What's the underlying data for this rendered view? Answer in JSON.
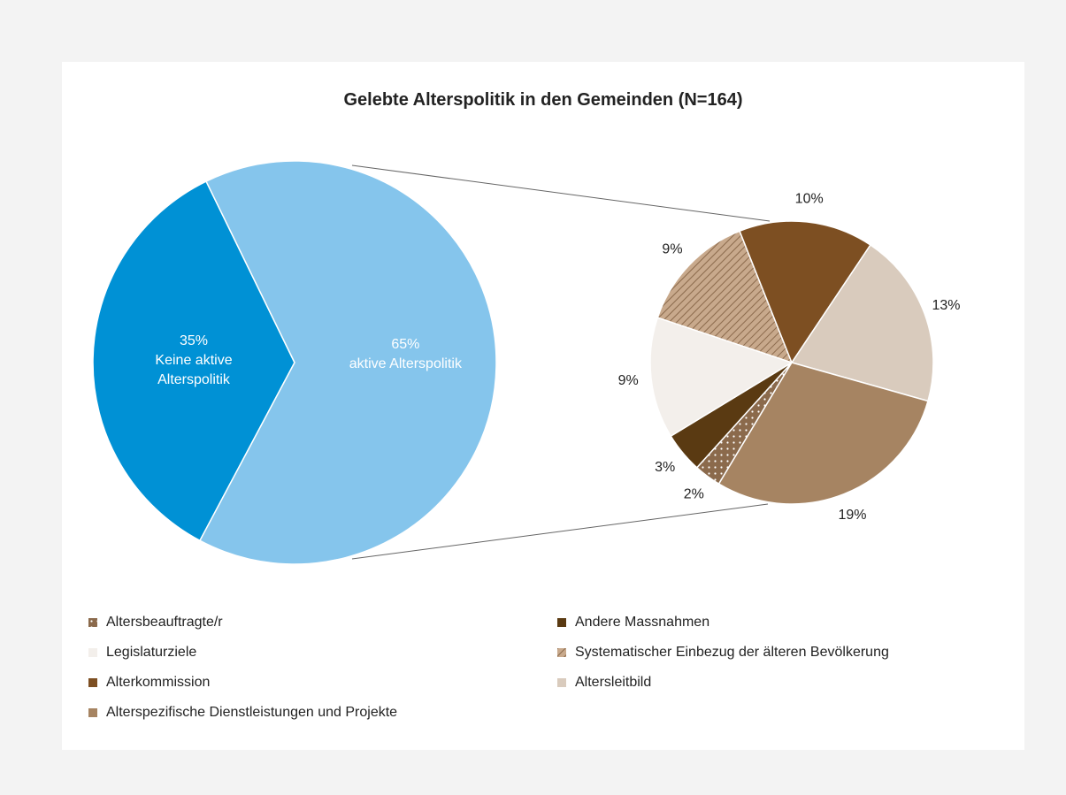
{
  "chart_data": {
    "type": "pie_of_pie",
    "title": "Gelebte Alterspolitik in den Gemeinden (N=164)",
    "main": {
      "categories": [
        "Keine aktive Alterspolitik",
        "aktive Alterspolitik"
      ],
      "values": [
        35,
        65
      ],
      "value_labels": [
        "35%",
        "65%"
      ],
      "colors": [
        "#0091d5",
        "#85c5ec"
      ]
    },
    "detail": {
      "categories": [
        "Altersbeauftragte/r",
        "Andere Massnahmen",
        "Legislaturziele",
        "Systematischer Einbezug der älteren Bevölkerung",
        "Alterkommission",
        "Altersleitbild",
        "Alterspezifische Dienstleistungen und Projekte"
      ],
      "values": [
        2,
        3,
        9,
        9,
        10,
        13,
        19
      ],
      "value_labels": [
        "2%",
        "3%",
        "9%",
        "9%",
        "10%",
        "13%",
        "19%"
      ],
      "colors": [
        "#8b6a4c",
        "#5a3a12",
        "#f3efeb",
        "#c8a98c",
        "#7d4f22",
        "#d9cbbd",
        "#a68462"
      ],
      "patterns": [
        "dots",
        "none",
        "none",
        "hatch",
        "none",
        "none",
        "none"
      ]
    }
  }
}
